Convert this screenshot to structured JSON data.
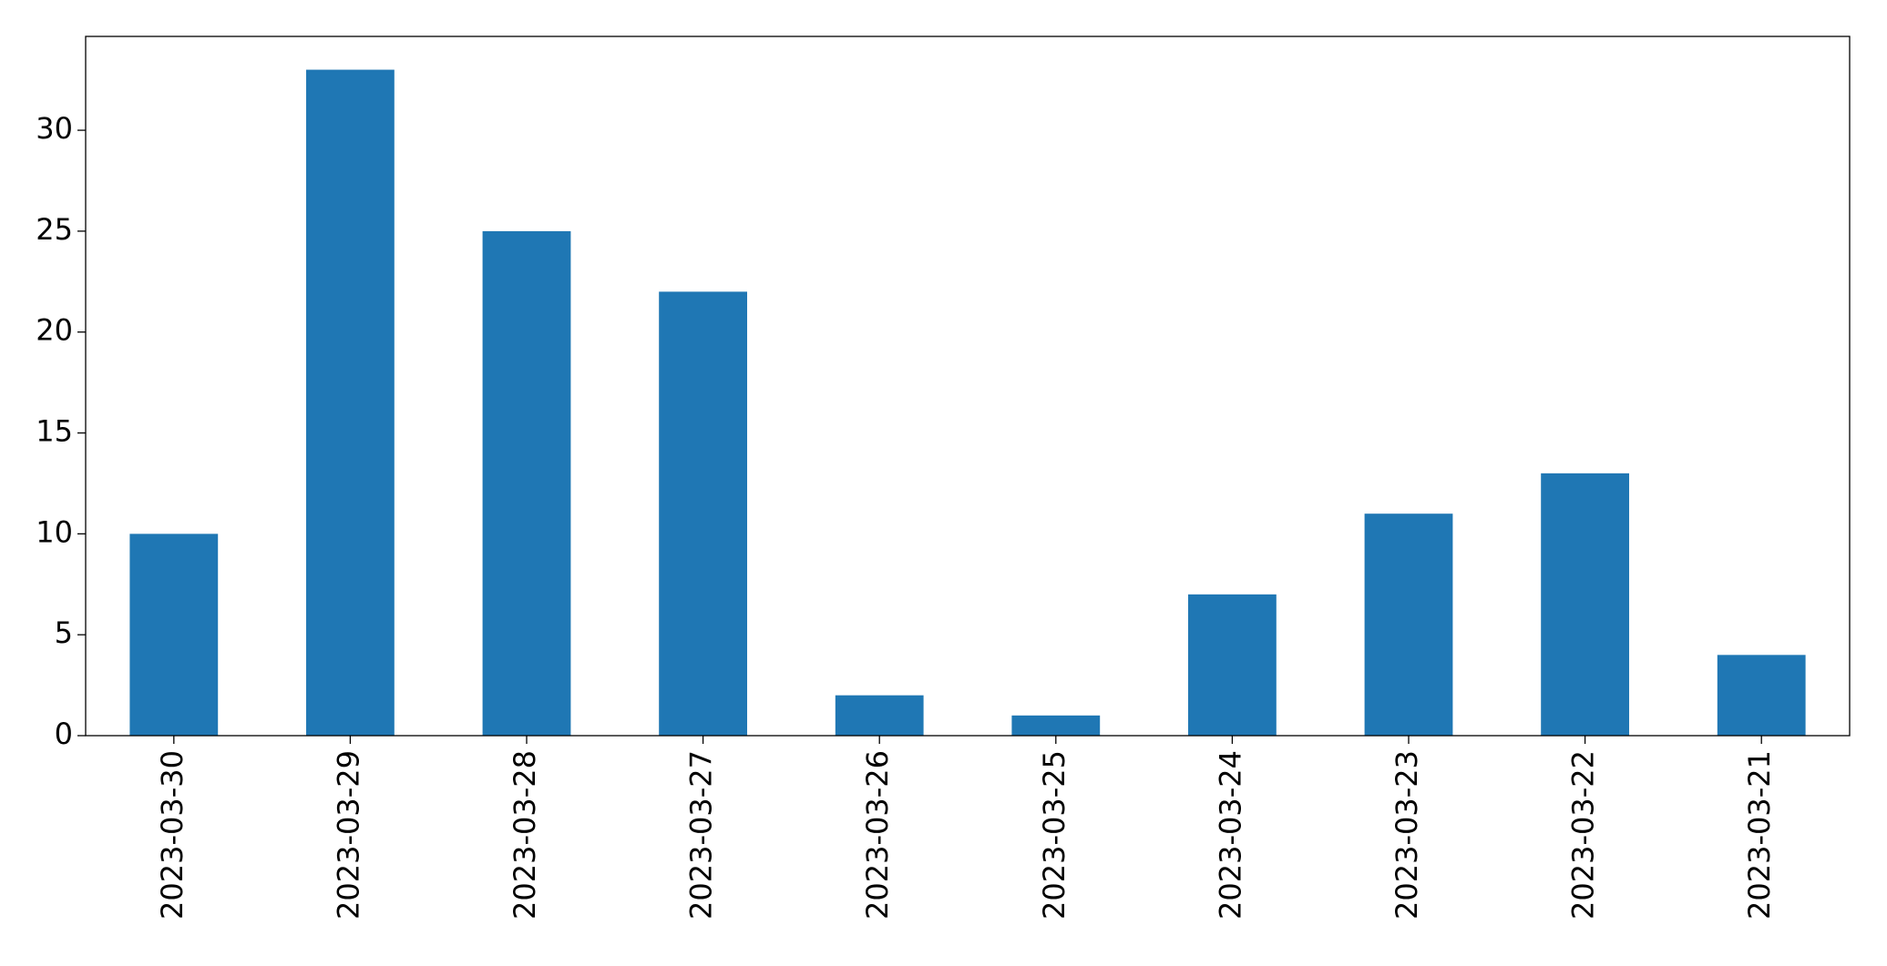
{
  "chart_data": {
    "type": "bar",
    "categories": [
      "2023-03-30",
      "2023-03-29",
      "2023-03-28",
      "2023-03-27",
      "2023-03-26",
      "2023-03-25",
      "2023-03-24",
      "2023-03-23",
      "2023-03-22",
      "2023-03-21"
    ],
    "values": [
      10,
      33,
      25,
      22,
      2,
      1,
      7,
      11,
      13,
      4
    ],
    "color": "#1f77b4",
    "ylim": [
      0,
      34.65
    ],
    "yticks": [
      0,
      5,
      10,
      15,
      20,
      25,
      30
    ],
    "grid": false
  }
}
